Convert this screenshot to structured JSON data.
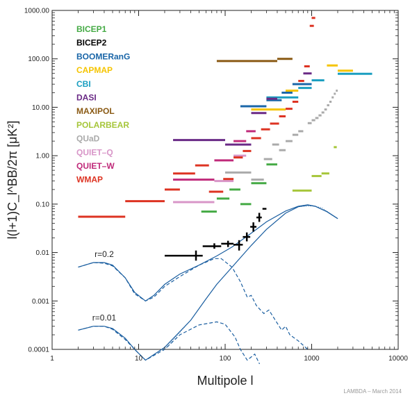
{
  "chart_data": {
    "type": "scatter",
    "xlabel": "Multipole l",
    "ylabel": "l(l+1)C_l^BB/2π [μK²]",
    "xscale": "log",
    "yscale": "log",
    "xlim": [
      1,
      10000
    ],
    "ylim": [
      0.0001,
      1000
    ],
    "x_ticks": [
      {
        "value": 1,
        "label": "1"
      },
      {
        "value": 10,
        "label": "10"
      },
      {
        "value": 100,
        "label": "100"
      },
      {
        "value": 1000,
        "label": "1000"
      },
      {
        "value": 10000,
        "label": "10000"
      }
    ],
    "y_ticks": [
      {
        "value": 0.0001,
        "label": "0.0001"
      },
      {
        "value": 0.001,
        "label": "0.001"
      },
      {
        "value": 0.01,
        "label": "0.01"
      },
      {
        "value": 0.1,
        "label": "0.10"
      },
      {
        "value": 1,
        "label": "1.00"
      },
      {
        "value": 10,
        "label": "10.00"
      },
      {
        "value": 100,
        "label": "100.00"
      },
      {
        "value": 1000,
        "label": "1000.00"
      }
    ],
    "credit": "LAMBDA – March 2014",
    "legend_position": "top-left",
    "series": [
      {
        "name": "BICEP1",
        "color": "#44aa44",
        "kind": "upper-limit",
        "points": [
          {
            "l": [
              53,
              80
            ],
            "y": 0.07
          },
          {
            "l": [
              80,
              112
            ],
            "y": 0.13
          },
          {
            "l": [
              112,
              150
            ],
            "y": 0.2
          },
          {
            "l": [
              150,
              200
            ],
            "y": 0.1
          },
          {
            "l": [
              200,
              300
            ],
            "y": 0.27
          },
          {
            "l": [
              300,
              400
            ],
            "y": 0.66
          }
        ]
      },
      {
        "name": "BICEP2",
        "color": "#000000",
        "kind": "detection",
        "points": [
          {
            "l": [
              20,
              55
            ],
            "lc": 46,
            "y": 0.0086,
            "err": [
              0.0068,
              0.011
            ]
          },
          {
            "l": [
              55,
              90
            ],
            "lc": 75,
            "y": 0.0135,
            "err": [
              0.012,
              0.0155
            ]
          },
          {
            "l": [
              90,
              125
            ],
            "lc": 108,
            "y": 0.0152,
            "err": [
              0.013,
              0.0175
            ]
          },
          {
            "l": [
              125,
              160
            ],
            "lc": 145,
            "y": 0.0145,
            "err": [
              0.011,
              0.018
            ]
          },
          {
            "l": [
              160,
              195
            ],
            "lc": 178,
            "y": 0.021,
            "err": [
              0.017,
              0.026
            ]
          },
          {
            "l": [
              195,
              230
            ],
            "lc": 212,
            "y": 0.034,
            "err": [
              0.027,
              0.042
            ]
          },
          {
            "l": [
              230,
              265
            ],
            "lc": 248,
            "y": 0.053,
            "err": [
              0.043,
              0.066
            ]
          },
          {
            "l": [
              270,
              300
            ],
            "lc": 285,
            "y": 0.08,
            "err": null
          }
        ]
      },
      {
        "name": "BOOMERanG",
        "color": "#1a66a8",
        "kind": "upper-limit",
        "points": [
          {
            "l": [
              150,
              300
            ],
            "y": 10.5
          },
          {
            "l": [
              300,
              450
            ],
            "y": 14.0
          },
          {
            "l": [
              450,
              600
            ],
            "y": 20.0
          },
          {
            "l": [
              600,
              1000
            ],
            "y": 30.0
          }
        ]
      },
      {
        "name": "CAPMAP",
        "color": "#f5c400",
        "kind": "upper-limit",
        "points": [
          {
            "l": [
              200,
              500
            ],
            "y": 9.0
          },
          {
            "l": [
              500,
              700
            ],
            "y": 22.0
          },
          {
            "l": [
              1500,
              2000
            ],
            "y": 73.0
          },
          {
            "l": [
              2000,
              3000
            ],
            "y": 57.0
          }
        ]
      },
      {
        "name": "CBI",
        "color": "#1a9ec0",
        "kind": "upper-limit",
        "points": [
          {
            "l": [
              300,
              700
            ],
            "y": 16.0
          },
          {
            "l": [
              700,
              1000
            ],
            "y": 25.0
          },
          {
            "l": [
              1000,
              1400
            ],
            "y": 36.0
          },
          {
            "l": [
              2000,
              5000
            ],
            "y": 49.0
          }
        ]
      },
      {
        "name": "DASI",
        "color": "#6a2a86",
        "kind": "upper-limit",
        "points": [
          {
            "l": [
              25,
              100
            ],
            "y": 2.1
          },
          {
            "l": [
              100,
              200
            ],
            "y": 1.7
          },
          {
            "l": [
              200,
              300
            ],
            "y": 7.6
          },
          {
            "l": [
              300,
              400
            ],
            "y": 15.0
          },
          {
            "l": [
              800,
              1000
            ],
            "y": 50.0
          }
        ]
      },
      {
        "name": "MAXIPOL",
        "color": "#8a5a14",
        "kind": "upper-limit",
        "points": [
          {
            "l": [
              80,
              400
            ],
            "y": 90.0
          },
          {
            "l": [
              400,
              600
            ],
            "y": 100.0
          }
        ]
      },
      {
        "name": "POLARBEAR",
        "color": "#a6c63a",
        "kind": "upper-limit",
        "points": [
          {
            "l": [
              600,
              1000
            ],
            "y": 0.19
          },
          {
            "l": [
              1000,
              1300
            ],
            "y": 0.38
          },
          {
            "l": [
              1300,
              1600
            ],
            "y": 0.43
          },
          {
            "l": [
              1800,
              1950
            ],
            "y": 1.5
          }
        ]
      },
      {
        "name": "QUaD",
        "color": "#aaaaaa",
        "kind": "upper-limit",
        "points": [
          {
            "l": [
              100,
              200
            ],
            "y": 0.45
          },
          {
            "l": [
              200,
              280
            ],
            "y": 0.32
          },
          {
            "l": [
              280,
              350
            ],
            "y": 0.85
          },
          {
            "l": [
              350,
              420
            ],
            "y": 1.7
          },
          {
            "l": [
              420,
              500
            ],
            "y": 1.3
          },
          {
            "l": [
              500,
              600
            ],
            "y": 2.0
          },
          {
            "l": [
              600,
              700
            ],
            "y": 2.7
          },
          {
            "l": [
              700,
              800
            ],
            "y": 3.2
          },
          {
            "l": [
              900,
              1000
            ],
            "y": 4.7
          },
          {
            "l": [
              1000,
              1100
            ],
            "y": 5.4
          },
          {
            "l": [
              1100,
              1200
            ],
            "y": 6.0
          },
          {
            "l": [
              1200,
              1300
            ],
            "y": 6.8
          },
          {
            "l": [
              1300,
              1400
            ],
            "y": 7.8
          },
          {
            "l": [
              1400,
              1500
            ],
            "y": 9.0
          },
          {
            "l": [
              1500,
              1600
            ],
            "y": 11.0
          },
          {
            "l": [
              1600,
              1700
            ],
            "y": 13.0
          },
          {
            "l": [
              1700,
              1800
            ],
            "y": 16.0
          },
          {
            "l": [
              1800,
              1900
            ],
            "y": 19.0
          },
          {
            "l": [
              1900,
              2000
            ],
            "y": 22.0
          }
        ]
      },
      {
        "name": "QUIET–Q",
        "color": "#d896c8",
        "kind": "upper-limit",
        "points": [
          {
            "l": [
              25,
              75
            ],
            "y": 0.11
          },
          {
            "l": [
              75,
              125
            ],
            "y": 0.3
          },
          {
            "l": [
              125,
              175
            ],
            "y": 1.0
          }
        ]
      },
      {
        "name": "QUIET–W",
        "color": "#c02a7a",
        "kind": "upper-limit",
        "points": [
          {
            "l": [
              25,
              75
            ],
            "y": 0.32
          },
          {
            "l": [
              75,
              125
            ],
            "y": 0.8
          },
          {
            "l": [
              125,
              175
            ],
            "y": 2.0
          },
          {
            "l": [
              175,
              225
            ],
            "y": 3.2
          }
        ]
      },
      {
        "name": "WMAP",
        "color": "#dd3322",
        "kind": "upper-limit",
        "points": [
          {
            "l": [
              2,
              7
            ],
            "y": 0.055
          },
          {
            "l": [
              7,
              20
            ],
            "y": 0.115
          },
          {
            "l": [
              20,
              30
            ],
            "y": 0.2
          },
          {
            "l": [
              25,
              45
            ],
            "y": 0.43
          },
          {
            "l": [
              45,
              65
            ],
            "y": 0.63
          },
          {
            "l": [
              65,
              95
            ],
            "y": 0.18
          },
          {
            "l": [
              95,
              125
            ],
            "y": 0.33
          },
          {
            "l": [
              125,
              160
            ],
            "y": 0.92
          },
          {
            "l": [
              160,
              200
            ],
            "y": 1.25
          },
          {
            "l": [
              200,
              260
            ],
            "y": 2.3
          },
          {
            "l": [
              260,
              330
            ],
            "y": 3.5
          },
          {
            "l": [
              330,
              420
            ],
            "y": 4.6
          },
          {
            "l": [
              420,
              500
            ],
            "y": 6.5
          },
          {
            "l": [
              500,
              600
            ],
            "y": 9.3
          },
          {
            "l": [
              600,
              700
            ],
            "y": 13.0
          },
          {
            "l": [
              700,
              820
            ],
            "y": 35.0
          },
          {
            "l": [
              820,
              950
            ],
            "y": 70.0
          },
          {
            "l": [
              950,
              1060
            ],
            "y": 480.0
          },
          {
            "l": [
              1000,
              1100
            ],
            "y": 700.0
          }
        ]
      }
    ],
    "theory_curves": [
      {
        "label": "r=0.2",
        "style": "solid",
        "points": [
          [
            2,
            0.005
          ],
          [
            3,
            0.0062
          ],
          [
            4,
            0.0062
          ],
          [
            5,
            0.0055
          ],
          [
            7,
            0.003
          ],
          [
            9,
            0.0015
          ],
          [
            12,
            0.001
          ],
          [
            15,
            0.0013
          ],
          [
            20,
            0.0022
          ],
          [
            30,
            0.0036
          ],
          [
            50,
            0.0055
          ],
          [
            80,
            0.0085
          ],
          [
            120,
            0.013
          ],
          [
            200,
            0.025
          ],
          [
            300,
            0.043
          ],
          [
            500,
            0.072
          ],
          [
            700,
            0.09
          ],
          [
            900,
            0.097
          ],
          [
            1100,
            0.09
          ],
          [
            1500,
            0.07
          ],
          [
            2000,
            0.05
          ]
        ]
      },
      {
        "label": "",
        "style": "dashed",
        "points": [
          [
            2,
            0.005
          ],
          [
            3,
            0.0062
          ],
          [
            4,
            0.006
          ],
          [
            5,
            0.0053
          ],
          [
            7,
            0.003
          ],
          [
            9,
            0.0014
          ],
          [
            12,
            0.001
          ],
          [
            15,
            0.0012
          ],
          [
            20,
            0.002
          ],
          [
            30,
            0.0032
          ],
          [
            50,
            0.0055
          ],
          [
            75,
            0.0075
          ],
          [
            90,
            0.0075
          ],
          [
            120,
            0.005
          ],
          [
            150,
            0.0025
          ],
          [
            180,
            0.0012
          ],
          [
            200,
            0.0013
          ],
          [
            230,
            0.0008
          ],
          [
            280,
            0.00055
          ],
          [
            320,
            0.00065
          ],
          [
            380,
            0.0004
          ],
          [
            450,
            0.00025
          ],
          [
            500,
            0.0003
          ],
          [
            560,
            0.0002
          ],
          [
            700,
            0.00015
          ],
          [
            900,
            0.0001
          ]
        ]
      },
      {
        "label": "",
        "style": "dotted",
        "points": [
          [
            20,
            0.0001
          ],
          [
            40,
            0.0004
          ],
          [
            60,
            0.0011
          ],
          [
            80,
            0.0022
          ],
          [
            120,
            0.005
          ],
          [
            200,
            0.014
          ],
          [
            300,
            0.03
          ],
          [
            500,
            0.065
          ],
          [
            700,
            0.088
          ],
          [
            1000,
            0.092
          ],
          [
            1300,
            0.085
          ],
          [
            2000,
            0.05
          ]
        ]
      },
      {
        "label": "r=0.01",
        "style": "solid",
        "points": [
          [
            2,
            0.00025
          ],
          [
            3,
            0.0003
          ],
          [
            4,
            0.0003
          ],
          [
            5,
            0.00027
          ],
          [
            7,
            0.00017
          ],
          [
            9,
            0.0001
          ],
          [
            12,
            6e-05
          ],
          [
            20,
            0.00011
          ],
          [
            40,
            0.0004
          ],
          [
            60,
            0.0011
          ],
          [
            80,
            0.0022
          ],
          [
            120,
            0.005
          ],
          [
            200,
            0.014
          ],
          [
            300,
            0.03
          ],
          [
            500,
            0.065
          ],
          [
            700,
            0.088
          ],
          [
            900,
            0.095
          ],
          [
            1100,
            0.09
          ],
          [
            1500,
            0.07
          ],
          [
            2000,
            0.05
          ]
        ]
      },
      {
        "label": "",
        "style": "dashed",
        "points": [
          [
            2,
            0.00025
          ],
          [
            3,
            0.0003
          ],
          [
            4,
            0.0003
          ],
          [
            5,
            0.00026
          ],
          [
            7,
            0.00016
          ],
          [
            9,
            0.0001
          ],
          [
            12,
            6e-05
          ],
          [
            20,
            0.0001
          ],
          [
            30,
            0.0002
          ],
          [
            50,
            0.00032
          ],
          [
            80,
            0.00037
          ],
          [
            100,
            0.00033
          ],
          [
            130,
            0.00018
          ],
          [
            150,
            0.0001
          ],
          [
            180,
            6e-05
          ],
          [
            220,
            8e-05
          ],
          [
            250,
            5e-05
          ]
        ]
      }
    ]
  }
}
